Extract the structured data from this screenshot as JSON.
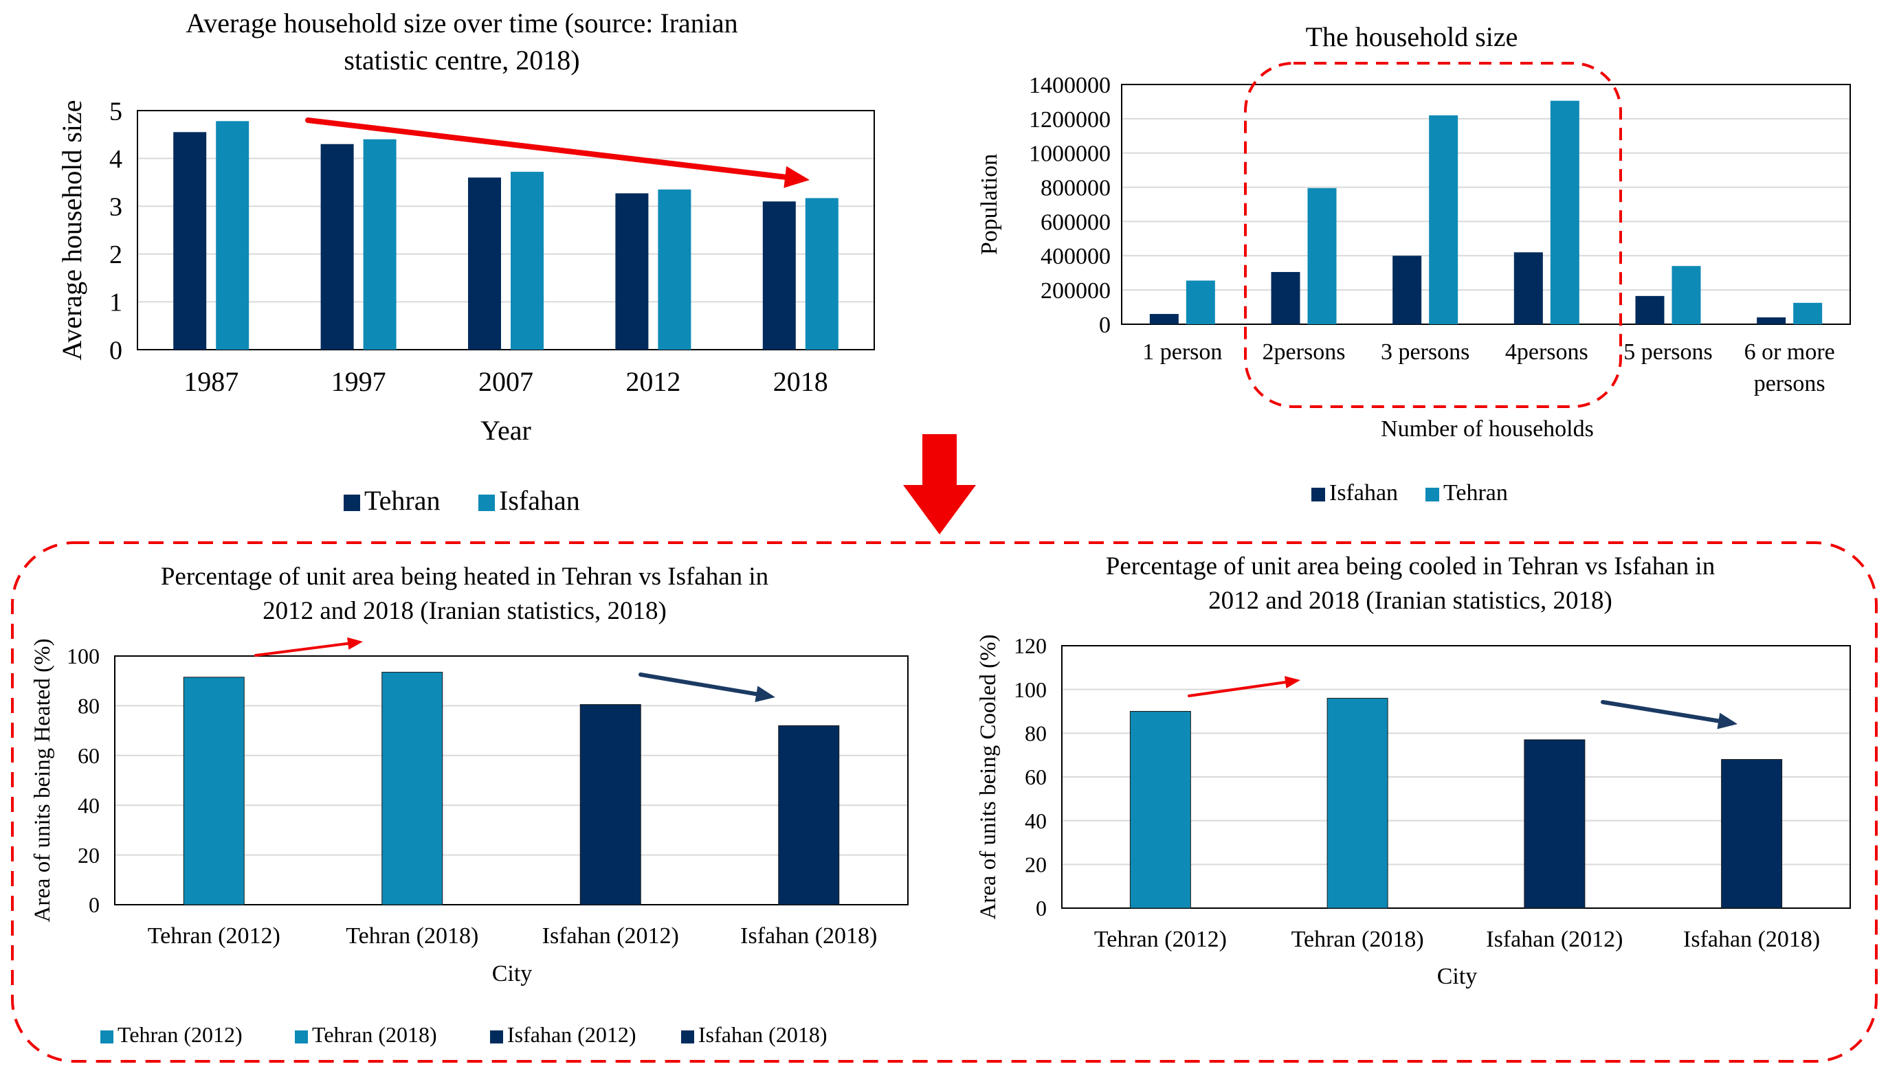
{
  "colors": {
    "dark": "#002B5C",
    "light": "#0E8AB6",
    "red": "#F00000",
    "navy_arrow": "#1B3A63",
    "grid": "#D9D9D9",
    "frame": "#000000"
  },
  "chart_data": [
    {
      "type": "bar",
      "title_lines": [
        "Average household size over time (source: Iranian",
        "statistic centre, 2018)"
      ],
      "xlabel": "Year",
      "ylabel": "Average household size",
      "categories": [
        "1987",
        "1997",
        "2007",
        "2012",
        "2018"
      ],
      "series": [
        {
          "name": "Tehran",
          "color": "#002B5C",
          "values": [
            4.55,
            4.3,
            3.6,
            3.27,
            3.1
          ]
        },
        {
          "name": "Isfahan",
          "color": "#0E8AB6",
          "values": [
            4.78,
            4.4,
            3.72,
            3.35,
            3.17
          ]
        }
      ],
      "ylim": [
        0,
        5
      ],
      "yticks": [
        "0",
        "1",
        "2",
        "3",
        "4",
        "5"
      ],
      "grid": true,
      "legend": "bottom",
      "annotations": [
        "red downward trend arrow over bars"
      ]
    },
    {
      "type": "bar",
      "title_lines": [
        "The household size"
      ],
      "xlabel": "Number of households",
      "ylabel": "Population",
      "categories": [
        [
          "1 person"
        ],
        [
          "2persons"
        ],
        [
          "3 persons"
        ],
        [
          "4persons"
        ],
        [
          "5 persons"
        ],
        [
          "6 or more",
          "persons"
        ]
      ],
      "series": [
        {
          "name": "Isfahan",
          "color": "#002B5C",
          "values": [
            60000,
            305000,
            400000,
            420000,
            165000,
            40000
          ]
        },
        {
          "name": "Tehran",
          "color": "#0E8AB6",
          "values": [
            255000,
            795000,
            1220000,
            1305000,
            340000,
            125000
          ]
        }
      ],
      "ylim": [
        0,
        1400000
      ],
      "yticks": [
        "0",
        "200000",
        "400000",
        "600000",
        "800000",
        "1000000",
        "1200000",
        "1400000"
      ],
      "grid": true,
      "legend": "bottom",
      "annotations": [
        "red dashed box around 2persons to 4persons"
      ]
    },
    {
      "type": "bar",
      "title_lines": [
        "Percentage of unit area being heated in Tehran vs Isfahan in",
        "2012 and 2018 (Iranian statistics, 2018)"
      ],
      "xlabel": "City",
      "ylabel": "Area of units being Heated (%)",
      "categories": [
        "Tehran (2012)",
        "Tehran (2018)",
        "Isfahan (2012)",
        "Isfahan (2018)"
      ],
      "values": [
        91.5,
        93.5,
        80.5,
        72
      ],
      "bar_colors": [
        "#0E8AB6",
        "#0E8AB6",
        "#002B5C",
        "#002B5C"
      ],
      "ylim": [
        0,
        100
      ],
      "yticks": [
        "0",
        "20",
        "40",
        "60",
        "80",
        "100"
      ],
      "grid": true,
      "legend": "bottom",
      "legend_entries": [
        "Tehran (2012)",
        "Tehran (2018)",
        "Isfahan (2012)",
        "Isfahan (2018)"
      ],
      "annotations": [
        "red rising arrow between Tehran bars",
        "navy falling arrow between Isfahan bars"
      ]
    },
    {
      "type": "bar",
      "title_lines": [
        "Percentage of unit area being cooled in Tehran vs Isfahan in",
        "2012 and 2018 (Iranian statistics, 2018)"
      ],
      "xlabel": "City",
      "ylabel": "Area of units being Cooled (%)",
      "categories": [
        "Tehran (2012)",
        "Tehran (2018)",
        "Isfahan (2012)",
        "Isfahan (2018)"
      ],
      "values": [
        90,
        96,
        77,
        68
      ],
      "bar_colors": [
        "#0E8AB6",
        "#0E8AB6",
        "#002B5C",
        "#002B5C"
      ],
      "ylim": [
        0,
        120
      ],
      "yticks": [
        "0",
        "20",
        "40",
        "60",
        "80",
        "100",
        "120"
      ],
      "grid": true,
      "legend": "none",
      "annotations": [
        "red rising arrow between Tehran bars",
        "navy falling arrow between Isfahan bars"
      ]
    }
  ]
}
